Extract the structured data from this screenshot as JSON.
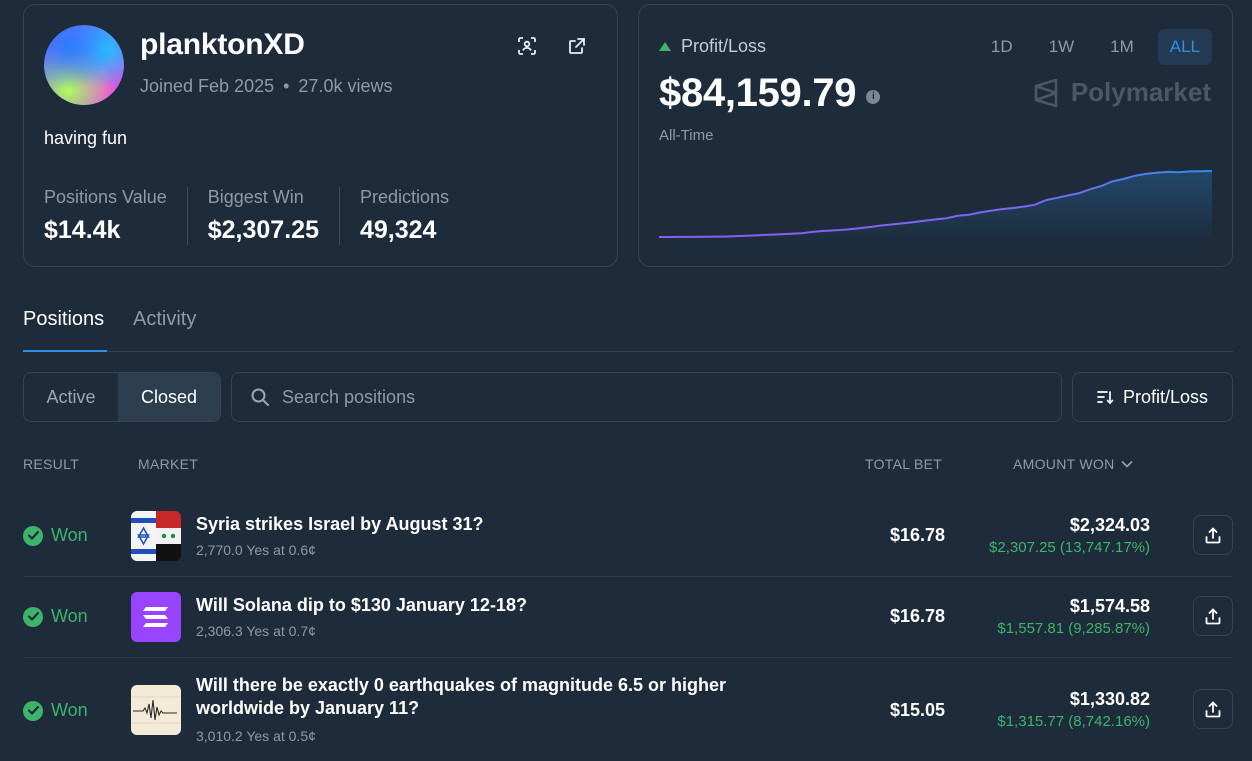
{
  "profile": {
    "username": "planktonXD",
    "joined": "Joined Feb 2025",
    "separator": "•",
    "views": "27.0k views",
    "bio": "having fun",
    "stats": [
      {
        "label": "Positions Value",
        "value": "$14.4k"
      },
      {
        "label": "Biggest Win",
        "value": "$2,307.25"
      },
      {
        "label": "Predictions",
        "value": "49,324"
      }
    ],
    "icons": [
      "scan-icon",
      "external-link-icon"
    ]
  },
  "pnl": {
    "title": "Profit/Loss",
    "amount": "$84,159.79",
    "info": "i",
    "period": "All-Time",
    "ranges": [
      "1D",
      "1W",
      "1M",
      "ALL"
    ],
    "active_range": "ALL",
    "brand": "Polymarket",
    "trend_color": "#3db469",
    "chart_data": {
      "type": "line",
      "x": [
        0,
        1,
        2,
        3,
        4,
        5,
        6,
        7,
        8,
        9,
        10,
        11,
        12,
        13,
        14,
        15,
        16,
        17,
        18,
        19,
        20,
        21,
        22,
        23,
        24,
        25,
        26,
        27,
        28,
        29,
        30,
        31,
        32,
        33,
        34,
        35,
        36,
        37,
        38,
        39,
        40,
        41,
        42,
        43,
        44,
        45,
        46,
        47,
        48,
        49,
        50
      ],
      "y": [
        0,
        0,
        100,
        150,
        300,
        500,
        700,
        1200,
        1700,
        2300,
        2900,
        3500,
        4200,
        5000,
        6800,
        7800,
        8600,
        9600,
        11000,
        12600,
        14500,
        16000,
        17400,
        19000,
        20800,
        22400,
        24000,
        27000,
        28400,
        31200,
        33600,
        35600,
        37000,
        38800,
        41200,
        47000,
        50000,
        53000,
        56000,
        61000,
        65000,
        71000,
        74000,
        78000,
        80500,
        82000,
        83000,
        82500,
        83600,
        83800,
        84159.79
      ],
      "xlabel": "",
      "ylabel": "",
      "series_colors": [
        "#8a5cf5",
        "#2e8fe6"
      ]
    }
  },
  "tabs": [
    {
      "label": "Positions",
      "active": true
    },
    {
      "label": "Activity",
      "active": false
    }
  ],
  "filters": {
    "active_label": "Active",
    "closed_label": "Closed",
    "search_placeholder": "Search positions",
    "sort_label": "Profit/Loss"
  },
  "table": {
    "headers": {
      "result": "RESULT",
      "market": "MARKET",
      "total_bet": "TOTAL BET",
      "amount_won": "AMOUNT WON"
    },
    "rows": [
      {
        "result": "Won",
        "title": "Syria strikes Israel by August 31?",
        "subtitle": "2,770.0 Yes at 0.6¢",
        "total_bet": "$16.78",
        "amount_won": "$2,324.03",
        "profit": "$2,307.25 (13,747.17%)",
        "thumb": "israel-syria-flags"
      },
      {
        "result": "Won",
        "title": "Will Solana dip to $130 January 12-18?",
        "subtitle": "2,306.3 Yes at 0.7¢",
        "total_bet": "$16.78",
        "amount_won": "$1,574.58",
        "profit": "$1,557.81 (9,285.87%)",
        "thumb": "solana-logo"
      },
      {
        "result": "Won",
        "title": "Will there be exactly 0 earthquakes of magnitude 6.5 or higher worldwide by January 11?",
        "subtitle": "3,010.2 Yes at 0.5¢",
        "total_bet": "$15.05",
        "amount_won": "$1,330.82",
        "profit": "$1,315.77 (8,742.16%)",
        "thumb": "seismograph"
      }
    ]
  }
}
